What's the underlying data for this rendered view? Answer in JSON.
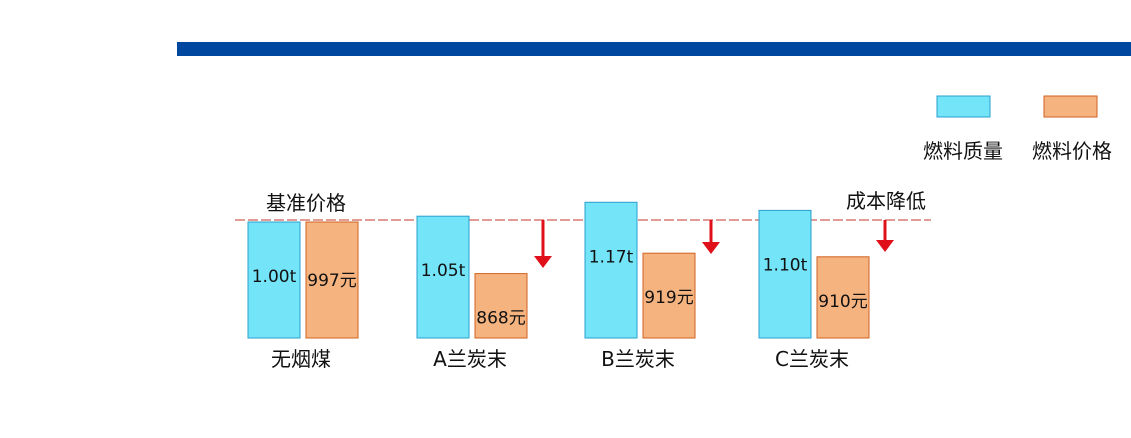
{
  "colors": {
    "header_bar": "#0047a0",
    "quality": "#74e4f8",
    "quality_border": "#2a9fd0",
    "price": "#f5b380",
    "price_border": "#d0621e",
    "baseline": "#c0392b",
    "arrow": "#e0101a"
  },
  "labels": {
    "baseline_left": "基准价格",
    "baseline_right": "成本降低"
  },
  "chart_data": {
    "type": "bar",
    "categories": [
      "无烟煤",
      "A兰炭末",
      "B兰炭末",
      "C兰炭末"
    ],
    "series": [
      {
        "name": "燃料质量",
        "values": [
          1.0,
          1.05,
          1.17,
          1.1
        ],
        "labels": [
          "1.00t",
          "1.05t",
          "1.17t",
          "1.10t"
        ]
      },
      {
        "name": "燃料价格",
        "values": [
          997,
          868,
          919,
          910
        ],
        "labels": [
          "997元",
          "868元",
          "919元",
          "910元"
        ]
      }
    ],
    "legend_position": "top-right",
    "baseline_category": "无烟煤",
    "cost_reduction_arrows": [
      "A兰炭末",
      "B兰炭末",
      "C兰炭末"
    ]
  }
}
